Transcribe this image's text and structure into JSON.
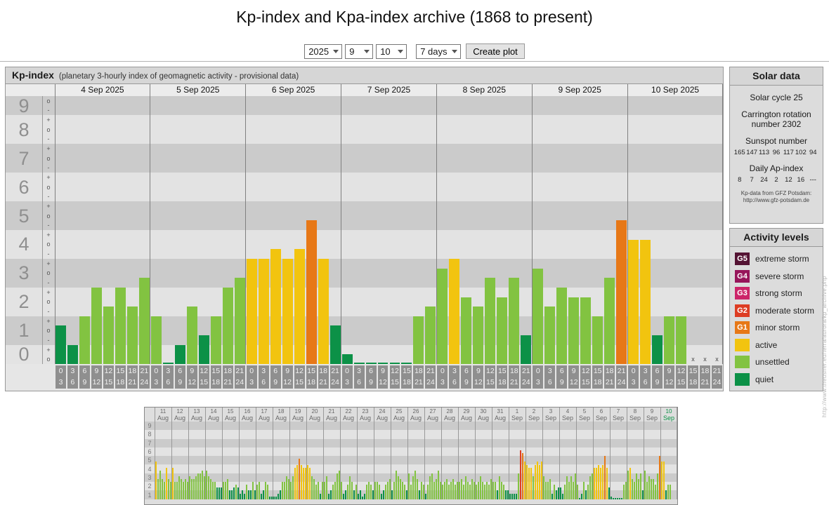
{
  "page": {
    "title": "Kp-index and Kpa-index archive (1868 to present)",
    "url_watermark": "http://www.theusner.eu/terra/aurora/kp_archive.php"
  },
  "controls": {
    "year": "2025",
    "month": "9",
    "day": "10",
    "range": "7 days",
    "create_button": "Create plot"
  },
  "kp_panel": {
    "title": "Kp-index",
    "subtitle": "(planetary 3-hourly index of geomagnetic activity - provisional data)"
  },
  "colors": {
    "scale": [
      {
        "max_thirds": 4,
        "name": "quiet",
        "color": "#0c9147"
      },
      {
        "max_thirds": 10,
        "name": "unsettled",
        "color": "#82c341"
      },
      {
        "max_thirds": 13,
        "name": "active",
        "color": "#f2c40f"
      },
      {
        "max_thirds": 16,
        "name": "G1",
        "color": "#e77817"
      },
      {
        "max_thirds": 19,
        "name": "G2",
        "color": "#dd3d23"
      },
      {
        "max_thirds": 22,
        "name": "G3",
        "color": "#cc2569"
      },
      {
        "max_thirds": 25,
        "name": "G4",
        "color": "#97155a"
      },
      {
        "max_thirds": 28,
        "name": "G5",
        "color": "#541333"
      }
    ],
    "highlight_day": "#0a9245",
    "band_dark": "#cbcbcb",
    "band_light": "#e3e3e3"
  },
  "chart_data": [
    {
      "name": "kp-main",
      "type": "bar",
      "title": "Kp-index 4 Sep 2025 - 10 Sep 2025, 3-hourly values in thirds (n/3 = Kp)",
      "ylim": [
        0,
        9
      ],
      "y_axis": {
        "numbers": [
          "9",
          "8",
          "7",
          "6",
          "5",
          "4",
          "3",
          "2",
          "1",
          "0"
        ],
        "sublevel_pattern": {
          "top": [
            "o",
            "-"
          ],
          "middle": [
            "+",
            "o",
            "-"
          ],
          "bottom": [
            "+",
            "o"
          ]
        }
      },
      "slot_labels": [
        [
          "0",
          "3"
        ],
        [
          "3",
          "6"
        ],
        [
          "6",
          "9"
        ],
        [
          "9",
          "12"
        ],
        [
          "12",
          "15"
        ],
        [
          "15",
          "18"
        ],
        [
          "18",
          "21"
        ],
        [
          "21",
          "24"
        ]
      ],
      "no_data_marker": "x",
      "days": [
        {
          "label": "4 Sep 2025",
          "values_thirds": [
            4,
            2,
            5,
            8,
            6,
            8,
            6,
            9
          ]
        },
        {
          "label": "5 Sep 2025",
          "values_thirds": [
            5,
            0,
            2,
            6,
            3,
            5,
            8,
            9
          ]
        },
        {
          "label": "6 Sep 2025",
          "values_thirds": [
            11,
            11,
            12,
            11,
            12,
            15,
            11,
            4
          ]
        },
        {
          "label": "7 Sep 2025",
          "values_thirds": [
            1,
            0,
            0,
            0,
            0,
            0,
            5,
            6
          ]
        },
        {
          "label": "8 Sep 2025",
          "values_thirds": [
            10,
            11,
            7,
            6,
            9,
            7,
            9,
            3
          ]
        },
        {
          "label": "9 Sep 2025",
          "values_thirds": [
            10,
            6,
            8,
            7,
            7,
            5,
            9,
            15
          ]
        },
        {
          "label": "10 Sep 2025",
          "values_thirds": [
            13,
            13,
            3,
            5,
            5,
            null,
            null,
            null
          ]
        }
      ]
    },
    {
      "name": "kp-overview",
      "type": "bar",
      "title": "Kp-index overview 11 Aug 2025 - 10 Sep 2025",
      "ylim": [
        0,
        9
      ],
      "y_axis": {
        "numbers": [
          "9",
          "8",
          "7",
          "6",
          "5",
          "4",
          "3",
          "2",
          "1"
        ]
      },
      "days": [
        {
          "day": "11",
          "month": "Aug",
          "values_thirds": [
            13,
            7,
            10,
            7,
            6,
            11,
            7,
            6
          ]
        },
        {
          "day": "12",
          "month": "Aug",
          "values_thirds": [
            11,
            6,
            6,
            8,
            7,
            6,
            7,
            6
          ]
        },
        {
          "day": "13",
          "month": "Aug",
          "values_thirds": [
            8,
            7,
            7,
            8,
            9,
            9,
            10,
            8
          ]
        },
        {
          "day": "14",
          "month": "Aug",
          "values_thirds": [
            10,
            8,
            7,
            6,
            6,
            4,
            4,
            4
          ]
        },
        {
          "day": "15",
          "month": "Aug",
          "values_thirds": [
            6,
            6,
            7,
            3,
            3,
            4,
            5,
            4
          ]
        },
        {
          "day": "16",
          "month": "Aug",
          "values_thirds": [
            2,
            3,
            2,
            5,
            3,
            3,
            6,
            3
          ]
        },
        {
          "day": "17",
          "month": "Aug",
          "values_thirds": [
            5,
            6,
            2,
            3,
            6,
            5,
            1,
            1
          ]
        },
        {
          "day": "18",
          "month": "Aug",
          "values_thirds": [
            1,
            1,
            2,
            3,
            6,
            6,
            8,
            7
          ]
        },
        {
          "day": "19",
          "month": "Aug",
          "values_thirds": [
            6,
            8,
            11,
            12,
            14,
            12,
            11,
            11
          ]
        },
        {
          "day": "20",
          "month": "Aug",
          "values_thirds": [
            12,
            11,
            8,
            7,
            5,
            6,
            2,
            6
          ]
        },
        {
          "day": "21",
          "month": "Aug",
          "values_thirds": [
            6,
            8,
            2,
            3,
            5,
            6,
            9,
            10
          ]
        },
        {
          "day": "22",
          "month": "Aug",
          "values_thirds": [
            6,
            2,
            3,
            5,
            8,
            6,
            3,
            5
          ]
        },
        {
          "day": "23",
          "month": "Aug",
          "values_thirds": [
            2,
            3,
            1,
            2,
            5,
            6,
            5,
            3
          ]
        },
        {
          "day": "24",
          "month": "Aug",
          "values_thirds": [
            6,
            6,
            5,
            2,
            3,
            5,
            6,
            7
          ]
        },
        {
          "day": "25",
          "month": "Aug",
          "values_thirds": [
            3,
            6,
            10,
            8,
            7,
            6,
            5,
            3
          ]
        },
        {
          "day": "26",
          "month": "Aug",
          "values_thirds": [
            9,
            5,
            8,
            10,
            7,
            3,
            6,
            5
          ]
        },
        {
          "day": "27",
          "month": "Aug",
          "values_thirds": [
            2,
            5,
            8,
            9,
            6,
            7,
            10,
            6
          ]
        },
        {
          "day": "28",
          "month": "Aug",
          "values_thirds": [
            5,
            6,
            7,
            5,
            6,
            7,
            5,
            6
          ]
        },
        {
          "day": "29",
          "month": "Aug",
          "values_thirds": [
            6,
            7,
            5,
            8,
            6,
            5,
            7,
            6
          ]
        },
        {
          "day": "30",
          "month": "Aug",
          "values_thirds": [
            5,
            6,
            8,
            6,
            5,
            6,
            5,
            7
          ]
        },
        {
          "day": "31",
          "month": "Aug",
          "values_thirds": [
            6,
            6,
            3,
            8,
            6,
            5,
            3,
            3
          ]
        },
        {
          "day": "1",
          "month": "Sep",
          "values_thirds": [
            2,
            2,
            2,
            2,
            9,
            17,
            16,
            13
          ]
        },
        {
          "day": "2",
          "month": "Sep",
          "values_thirds": [
            12,
            11,
            11,
            8,
            12,
            13,
            12,
            13
          ]
        },
        {
          "day": "3",
          "month": "Sep",
          "values_thirds": [
            8,
            6,
            6,
            7,
            2,
            5,
            3,
            4
          ]
        },
        {
          "day": "4",
          "month": "Sep",
          "values_thirds": [
            4,
            2,
            5,
            8,
            6,
            8,
            6,
            9
          ]
        },
        {
          "day": "5",
          "month": "Sep",
          "values_thirds": [
            5,
            0,
            2,
            6,
            3,
            5,
            8,
            9
          ]
        },
        {
          "day": "6",
          "month": "Sep",
          "values_thirds": [
            11,
            11,
            12,
            11,
            12,
            15,
            11,
            4
          ]
        },
        {
          "day": "7",
          "month": "Sep",
          "values_thirds": [
            1,
            0,
            0,
            0,
            0,
            0,
            5,
            6
          ]
        },
        {
          "day": "8",
          "month": "Sep",
          "values_thirds": [
            10,
            11,
            7,
            6,
            9,
            7,
            9,
            3
          ]
        },
        {
          "day": "9",
          "month": "Sep",
          "values_thirds": [
            10,
            6,
            8,
            7,
            7,
            5,
            9,
            15
          ]
        },
        {
          "day": "10",
          "month": "Sep",
          "values_thirds": [
            13,
            13,
            3,
            5,
            5,
            null,
            null,
            null
          ],
          "highlight": true
        }
      ]
    }
  ],
  "solar_data": {
    "title": "Solar data",
    "solar_cycle": "Solar cycle 25",
    "carrington": "Carrington rotation number 2302",
    "sunspot_title": "Sunspot number",
    "sunspot_values": [
      "165",
      "147",
      "113",
      "96",
      "117",
      "102",
      "94"
    ],
    "ap_title": "Daily Ap-index",
    "ap_values": [
      "8",
      "7",
      "24",
      "2",
      "12",
      "16",
      "---"
    ],
    "source_line1": "Kp-data from GFZ Potsdam:",
    "source_line2": "http://www.gfz-potsdam.de"
  },
  "activity_levels": {
    "title": "Activity levels",
    "items": [
      {
        "badge": "G5",
        "label": "extreme storm",
        "color": "#541333"
      },
      {
        "badge": "G4",
        "label": "severe storm",
        "color": "#97155a"
      },
      {
        "badge": "G3",
        "label": "strong storm",
        "color": "#cc2569"
      },
      {
        "badge": "G2",
        "label": "moderate storm",
        "color": "#dd3d23"
      },
      {
        "badge": "G1",
        "label": "minor storm",
        "color": "#e77817"
      },
      {
        "badge": "",
        "label": "active",
        "color": "#f2c40f"
      },
      {
        "badge": "",
        "label": "unsettled",
        "color": "#82c341"
      },
      {
        "badge": "",
        "label": "quiet",
        "color": "#0c9147"
      }
    ]
  }
}
